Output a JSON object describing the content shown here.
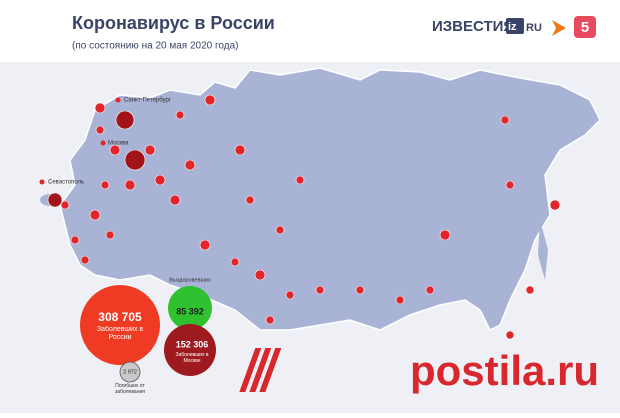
{
  "header": {
    "title": "Коронавирус в России",
    "subtitle": "(по состоянию на 20 мая 2020 года)",
    "logos": [
      "ИЗВЕСТИЯ",
      "iz",
      "RU",
      "5"
    ]
  },
  "cities": [
    {
      "label": "Санкт-Петербург"
    },
    {
      "label": "Москва"
    },
    {
      "label": "Севастополь"
    }
  ],
  "stats": {
    "cases": {
      "value": "308 705",
      "label": "Заболевших в России"
    },
    "recovered": {
      "value": "85 392",
      "label": "Выздоровевших"
    },
    "moscow": {
      "value": "152 306",
      "label": "Заболевших в Москве"
    },
    "deaths": {
      "value": "2 972",
      "label": "Погибших от заболевания"
    }
  },
  "watermark": "postila.ru"
}
